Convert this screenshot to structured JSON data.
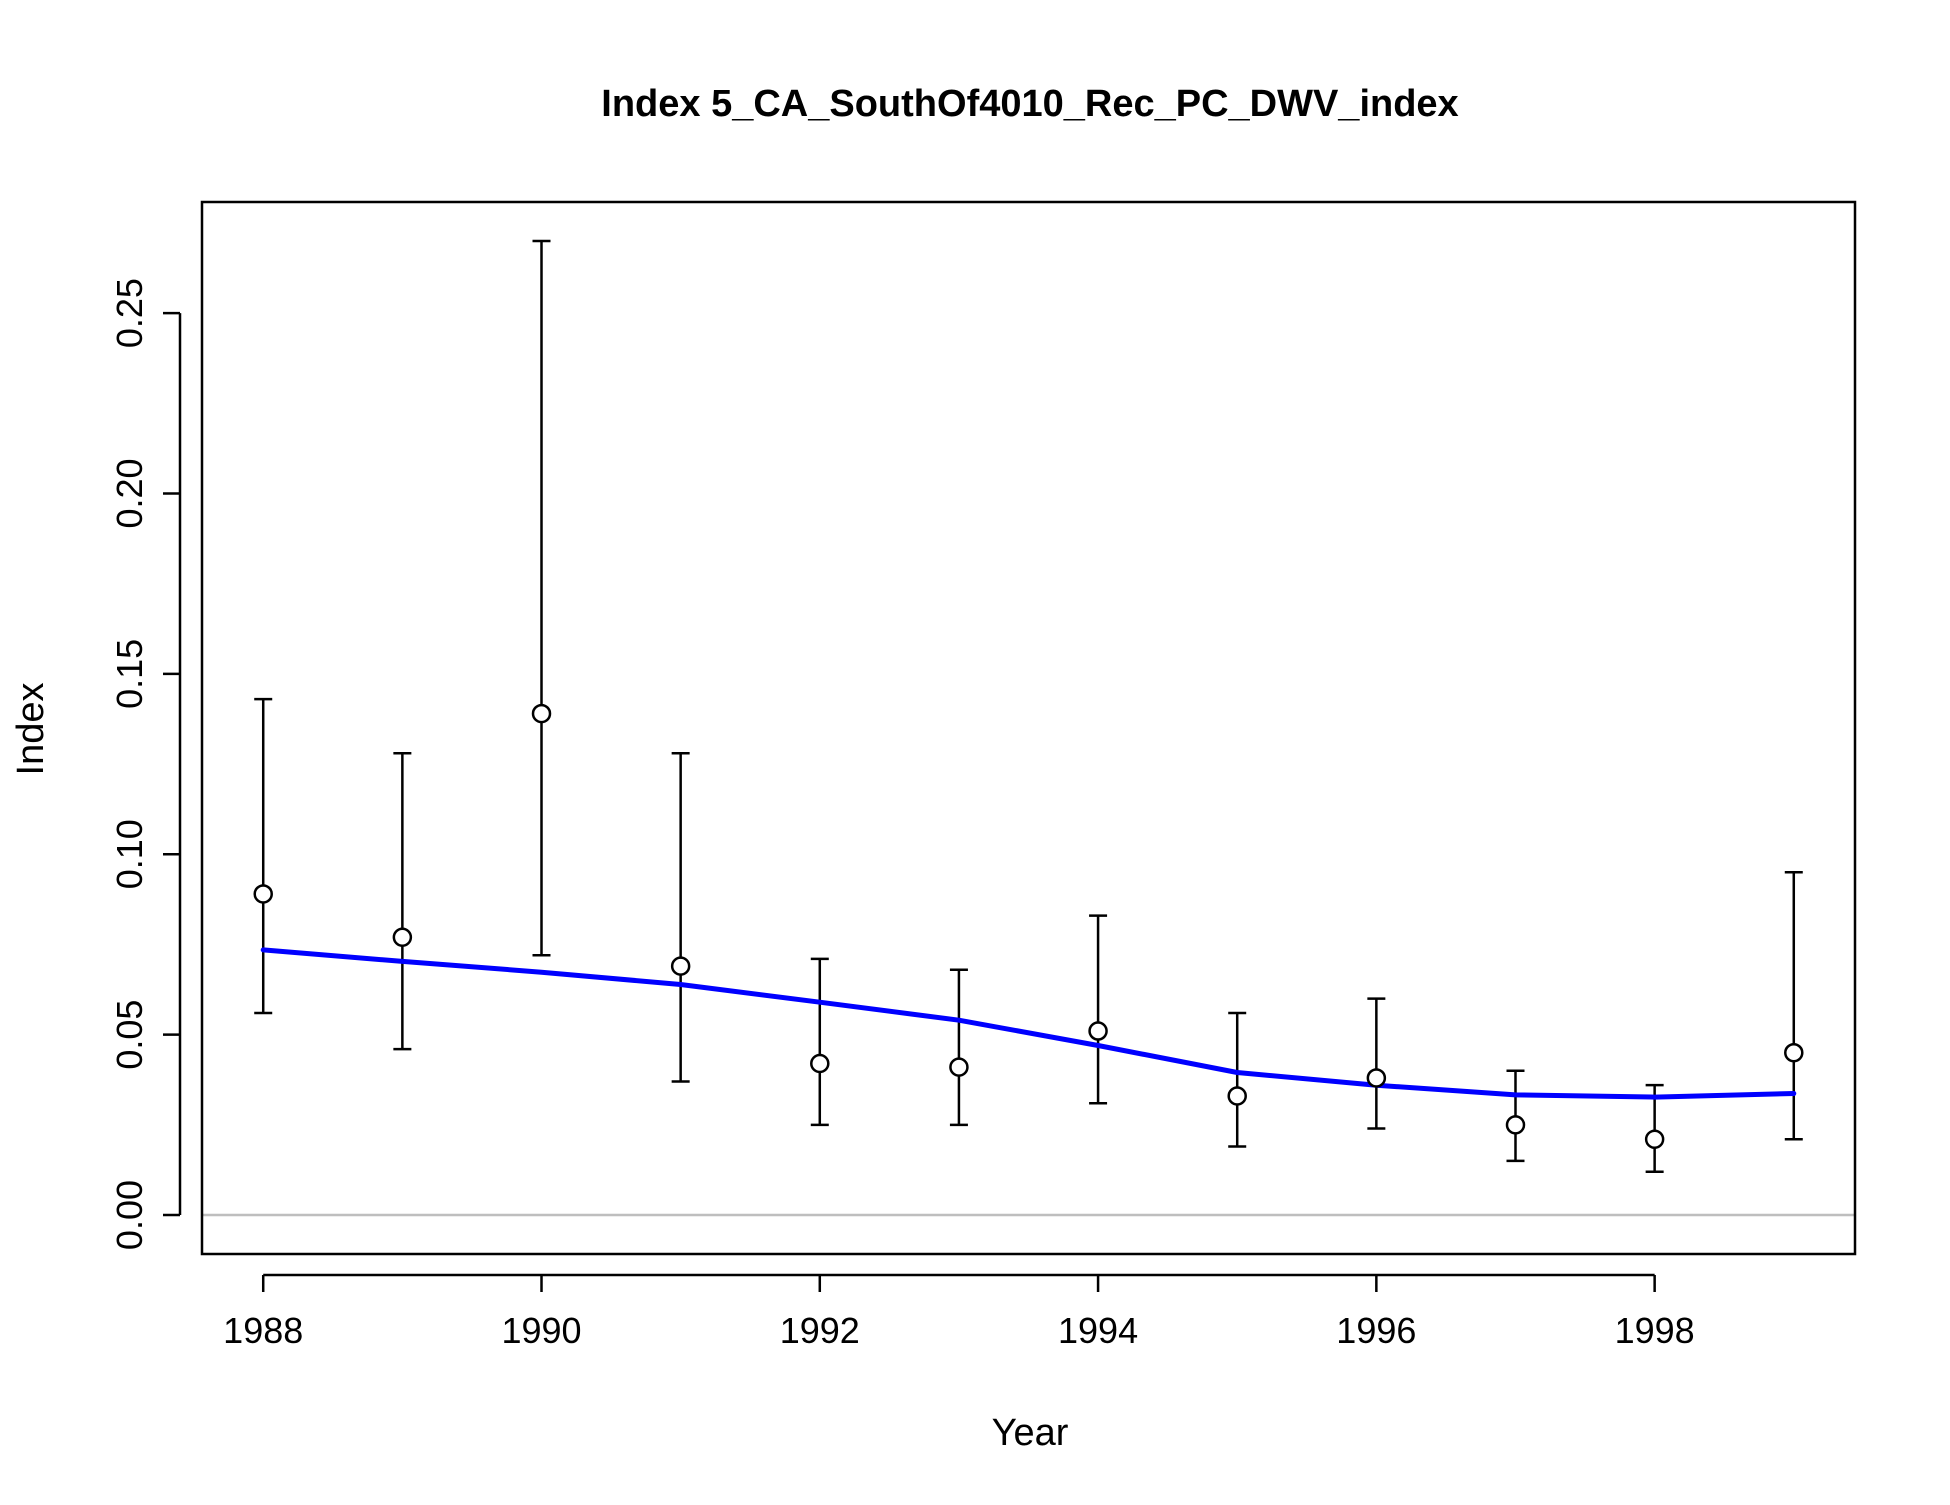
{
  "chart_data": {
    "type": "scatter",
    "title": "Index 5_CA_SouthOf4010_Rec_PC_DWV_index",
    "xlabel": "Year",
    "ylabel": "Index",
    "xlim": [
      1987.56,
      1999.44
    ],
    "ylim": [
      -0.0108,
      0.2808
    ],
    "x_ticks": [
      1988,
      1990,
      1992,
      1994,
      1996,
      1998
    ],
    "x_tick_labels": [
      "1988",
      "1990",
      "1992",
      "1994",
      "1996",
      "1998"
    ],
    "y_ticks": [
      0.0,
      0.05,
      0.1,
      0.15,
      0.2,
      0.25
    ],
    "y_tick_labels": [
      "0.00",
      "0.05",
      "0.10",
      "0.15",
      "0.20",
      "0.25"
    ],
    "grid": false,
    "reference_line": 0,
    "series": [
      {
        "kind": "observed",
        "marker": "open-circle",
        "x": [
          1988,
          1989,
          1990,
          1991,
          1992,
          1993,
          1994,
          1995,
          1996,
          1997,
          1998,
          1999
        ],
        "y": [
          0.089,
          0.077,
          0.139,
          0.069,
          0.042,
          0.041,
          0.051,
          0.033,
          0.038,
          0.025,
          0.021,
          0.045
        ],
        "lower": [
          0.056,
          0.046,
          0.072,
          0.037,
          0.025,
          0.025,
          0.031,
          0.019,
          0.024,
          0.015,
          0.012,
          0.021
        ],
        "upper": [
          0.143,
          0.128,
          0.27,
          0.128,
          0.071,
          0.068,
          0.083,
          0.056,
          0.06,
          0.04,
          0.036,
          0.095
        ]
      },
      {
        "kind": "fitted",
        "color": "#0000ff",
        "x": [
          1988,
          1989,
          1990,
          1991,
          1992,
          1993,
          1994,
          1995,
          1996,
          1997,
          1998,
          1999
        ],
        "y": [
          0.0735,
          0.0703,
          0.0673,
          0.0639,
          0.059,
          0.054,
          0.047,
          0.0395,
          0.036,
          0.0333,
          0.0327,
          0.0337
        ]
      }
    ],
    "colors": {
      "fit_line": "#0000ff",
      "points": "#000000",
      "zero_line": "#bebebe"
    }
  }
}
